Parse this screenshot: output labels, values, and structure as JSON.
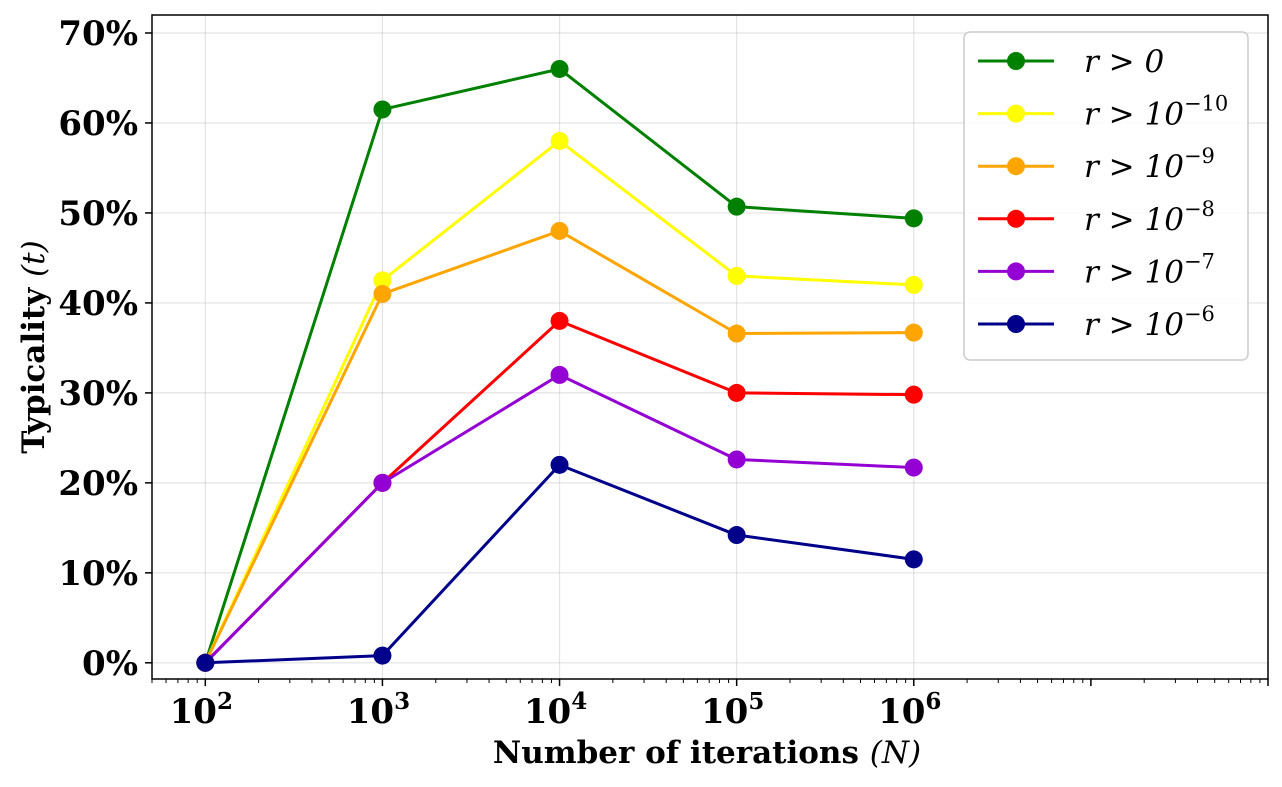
{
  "chart_data": {
    "type": "line",
    "xscale": "log",
    "x": [
      100,
      1000,
      10000,
      100000,
      1000000
    ],
    "x_tick_labels": [
      {
        "base": "10",
        "exp": "2"
      },
      {
        "base": "10",
        "exp": "3"
      },
      {
        "base": "10",
        "exp": "4"
      },
      {
        "base": "10",
        "exp": "5"
      },
      {
        "base": "10",
        "exp": "6"
      }
    ],
    "y_tick_labels": [
      "0%",
      "10%",
      "20%",
      "30%",
      "40%",
      "50%",
      "60%",
      "70%"
    ],
    "y_ticks": [
      0,
      10,
      20,
      30,
      40,
      50,
      60,
      70
    ],
    "xlim": [
      50,
      100000000
    ],
    "ylim": [
      -1.8,
      72
    ],
    "xlabel": {
      "text": "Number of iterations",
      "var": "(N)"
    },
    "ylabel": {
      "text": "Typicality",
      "var": "(t)"
    },
    "grid": true,
    "legend_position": "top-right",
    "series": [
      {
        "name": "r > 0",
        "name_base": "r > 0",
        "name_exp": "",
        "color": "#008000",
        "values": [
          0,
          61.5,
          66.0,
          50.7,
          49.4
        ]
      },
      {
        "name": "r > 10^-10",
        "name_base": "r > 10",
        "name_exp": "−10",
        "color": "#ffff00",
        "values": [
          0,
          42.5,
          58.0,
          43.0,
          42.0
        ]
      },
      {
        "name": "r > 10^-9",
        "name_base": "r > 10",
        "name_exp": "−9",
        "color": "#ffa500",
        "values": [
          0,
          41.0,
          48.0,
          36.6,
          36.7
        ]
      },
      {
        "name": "r > 10^-8",
        "name_base": "r > 10",
        "name_exp": "−8",
        "color": "#ff0000",
        "values": [
          0,
          20.0,
          38.0,
          30.0,
          29.8
        ]
      },
      {
        "name": "r > 10^-7",
        "name_base": "r > 10",
        "name_exp": "−7",
        "color": "#9400d3",
        "values": [
          0,
          20.0,
          32.0,
          22.6,
          21.7
        ]
      },
      {
        "name": "r > 10^-6",
        "name_base": "r > 10",
        "name_exp": "−6",
        "color": "#00008b",
        "values": [
          0,
          0.8,
          22.0,
          14.2,
          11.5
        ]
      }
    ]
  }
}
